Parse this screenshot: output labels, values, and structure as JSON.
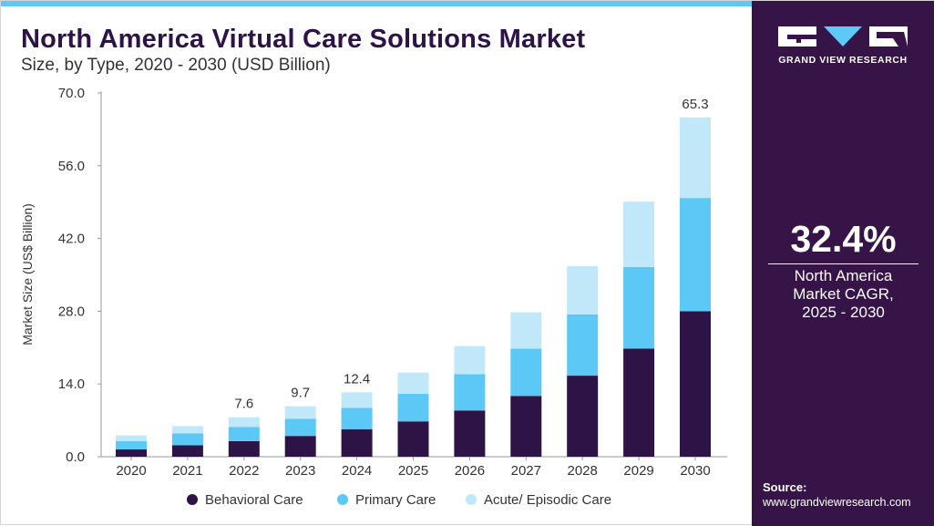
{
  "header": {
    "title": "North America Virtual Care Solutions Market",
    "subtitle": "Size, by Type, 2020 - 2030 (USD Billion)"
  },
  "brand": {
    "logo_text": "GRAND VIEW RESEARCH"
  },
  "sidebar": {
    "cagr_value": "32.4%",
    "cagr_label_lines": [
      "North America",
      "Market CAGR,",
      "2025 - 2030"
    ],
    "source_label": "Source:",
    "source_url": "www.grandviewresearch.com"
  },
  "colors": {
    "title": "#2e1446",
    "sidebar_bg": "#371447",
    "accent": "#5fc9f5"
  },
  "chart_data": {
    "type": "bar",
    "stacked": true,
    "categories": [
      "2020",
      "2021",
      "2022",
      "2023",
      "2024",
      "2025",
      "2026",
      "2027",
      "2028",
      "2029",
      "2030"
    ],
    "series": [
      {
        "name": "Behavioral Care",
        "color": "#2e1446",
        "values": [
          1.4,
          2.2,
          3.0,
          4.0,
          5.3,
          6.8,
          8.9,
          11.7,
          15.6,
          20.8,
          28.0
        ]
      },
      {
        "name": "Primary Care",
        "color": "#5bc8f5",
        "values": [
          1.6,
          2.3,
          2.7,
          3.3,
          4.1,
          5.3,
          7.0,
          9.1,
          11.8,
          15.7,
          21.8
        ]
      },
      {
        "name": "Acute/ Episodic Care",
        "color": "#c1e8f9",
        "values": [
          1.1,
          1.4,
          1.9,
          2.4,
          3.0,
          4.1,
          5.4,
          7.0,
          9.3,
          12.6,
          15.5
        ]
      }
    ],
    "data_labels": [
      {
        "category": "2022",
        "label": "7.6"
      },
      {
        "category": "2023",
        "label": "9.7"
      },
      {
        "category": "2024",
        "label": "12.4"
      },
      {
        "category": "2030",
        "label": "65.3"
      }
    ],
    "ylabel": "Market Size (US$ Billion)",
    "xlabel": "",
    "ylim": [
      0,
      70
    ],
    "yticks": [
      "0.0",
      "14.0",
      "28.0",
      "42.0",
      "56.0",
      "70.0"
    ],
    "grid": false,
    "legend_position": "bottom"
  }
}
